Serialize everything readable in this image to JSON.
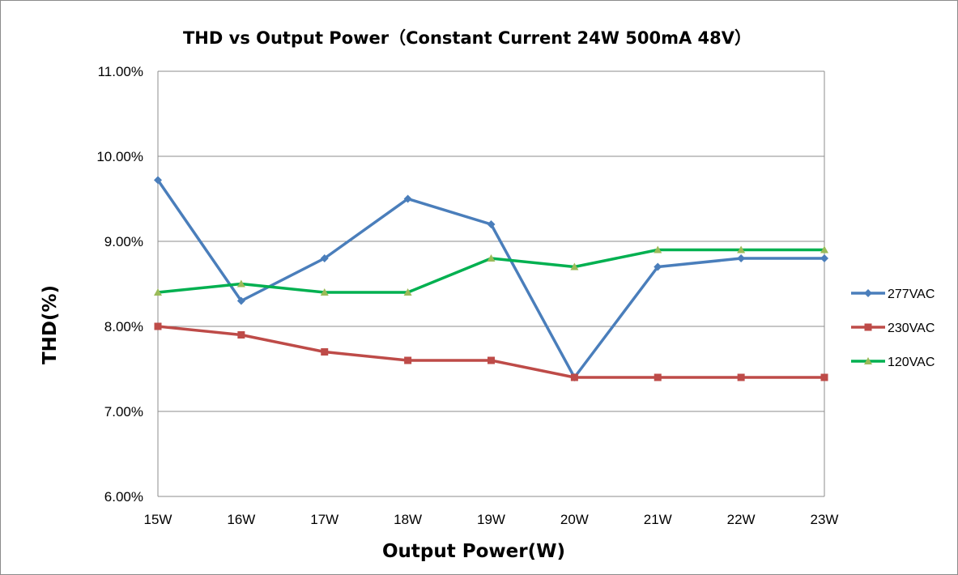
{
  "chart_data": {
    "type": "line",
    "title": "THD vs Output Power（Constant Current 24W  500mA 48V）",
    "xlabel": "Output Power(W)",
    "ylabel": "THD(%)",
    "categories": [
      "15W",
      "16W",
      "17W",
      "18W",
      "19W",
      "20W",
      "21W",
      "22W",
      "23W"
    ],
    "ylim": [
      6.0,
      11.0
    ],
    "yticks": [
      6.0,
      7.0,
      8.0,
      9.0,
      10.0,
      11.0
    ],
    "ytick_labels": [
      "6.00%",
      "7.00%",
      "8.00%",
      "9.00%",
      "10.00%",
      "11.00%"
    ],
    "grid": "horizontal",
    "legend_position": "right",
    "series": [
      {
        "name": "277VAC",
        "color": "#4a7ebb",
        "marker": "diamond",
        "values": [
          9.72,
          8.3,
          8.8,
          9.5,
          9.2,
          7.4,
          8.7,
          8.8,
          8.8
        ]
      },
      {
        "name": "230VAC",
        "color": "#be4b48",
        "marker": "square",
        "values": [
          8.0,
          7.9,
          7.7,
          7.6,
          7.6,
          7.4,
          7.4,
          7.4,
          7.4
        ]
      },
      {
        "name": "120VAC",
        "color": "#00b050",
        "marker_color": "#9bbb59",
        "marker": "triangle",
        "values": [
          8.4,
          8.5,
          8.4,
          8.4,
          8.8,
          8.7,
          8.9,
          8.9,
          8.9
        ]
      }
    ]
  }
}
